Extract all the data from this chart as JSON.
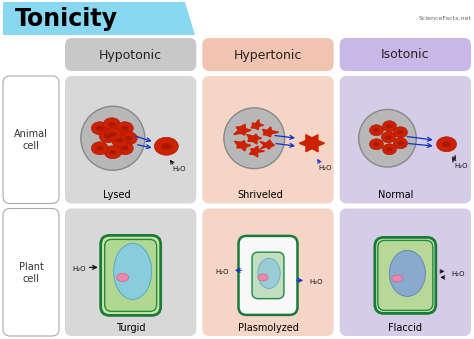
{
  "title": "Tonicity",
  "title_bg_color": "#87d8f0",
  "title_font_color": "#000000",
  "bg_color": "#ffffff",
  "watermark": "ScienceFacts.net",
  "columns": [
    "Hypotonic",
    "Hypertonic",
    "Isotonic"
  ],
  "col_bg_colors": [
    "#c8c8c8",
    "#f0c4b0",
    "#c8b8e8"
  ],
  "rows": [
    "Animal\ncell",
    "Plant\ncell"
  ],
  "row_labels_box_color": "#ffffff",
  "cell_bg_colors": [
    "#d8d8d8",
    "#f5d5c5",
    "#d5cce8"
  ],
  "animal_labels": [
    "Lysed",
    "Shriveled",
    "Normal"
  ],
  "plant_labels": [
    "Turgid",
    "Plasmolyzed",
    "Flaccid"
  ],
  "arrow_color": "#1133cc",
  "h2o_color": "#111111",
  "cell_wall_color": "#1a7a3a",
  "rbc_color": "#cc2200",
  "rbc_edge": "#aa1100",
  "sphere_fill": "#b8b8b8",
  "sphere_edge": "#888888"
}
